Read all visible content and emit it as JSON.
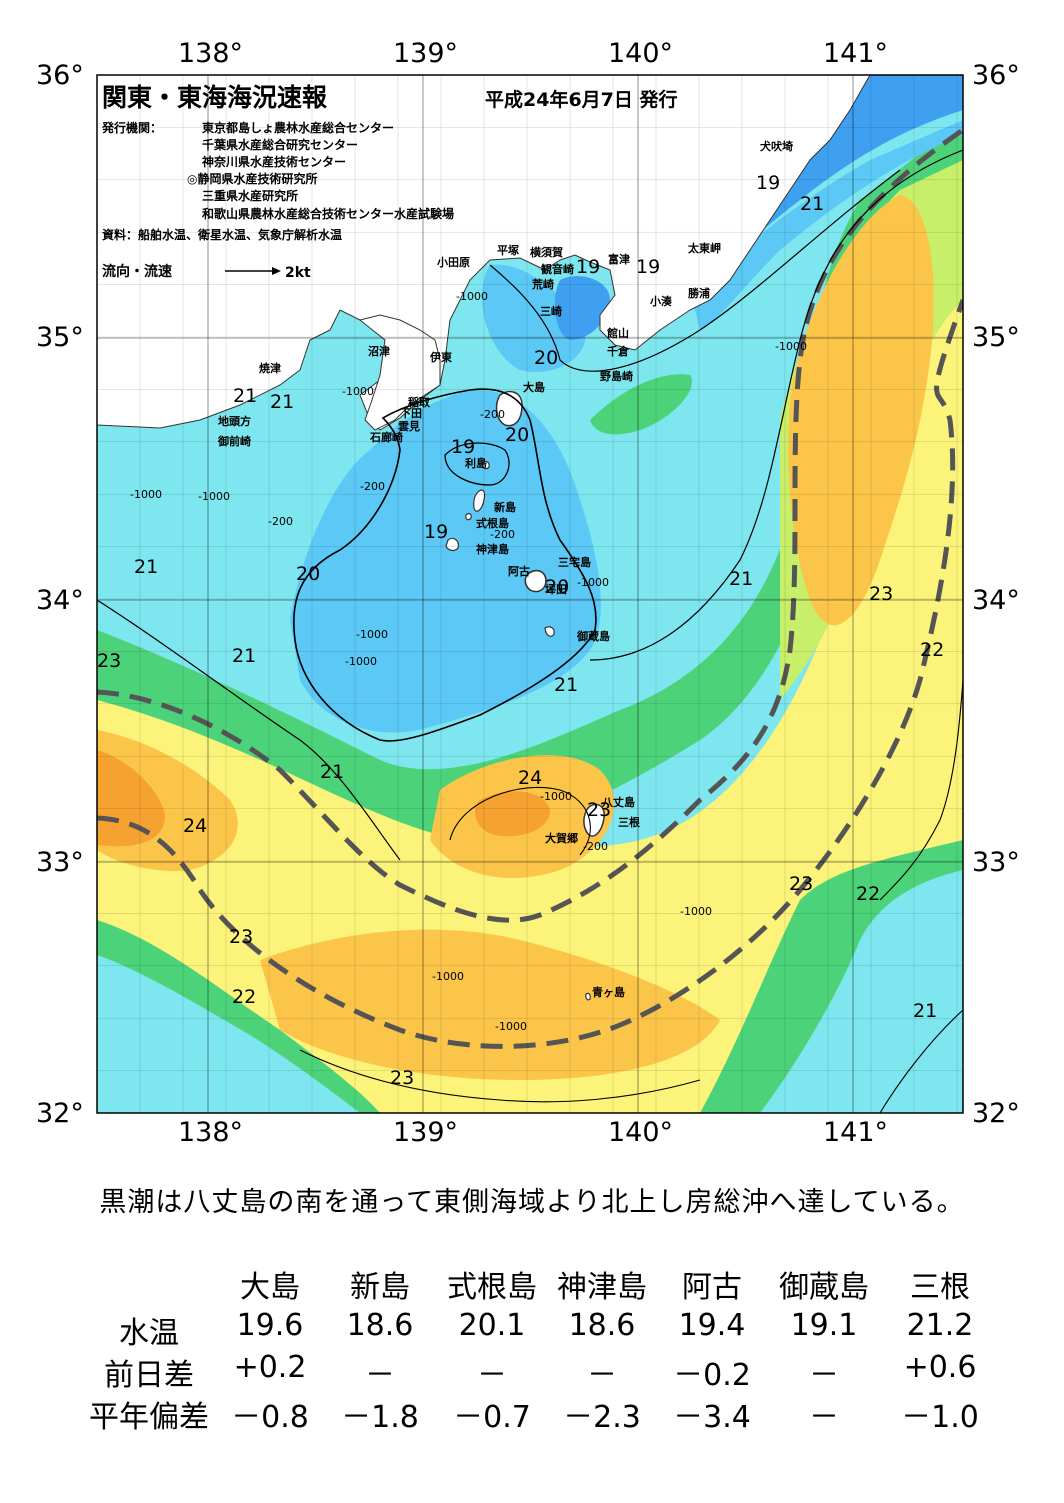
{
  "map": {
    "title": "関東・東海海況速報",
    "issue_date": "平成24年6月7日 発行",
    "publisher_label": "発行機関：",
    "publishers": [
      "東京都島しょ農林水産総合センター",
      "千葉県水産総合研究センター",
      "神奈川県水産技術センター",
      "◎静岡県水産技術研究所",
      "三重県水産研究所",
      "和歌山県農林水産総合技術センター水産試験場"
    ],
    "sources": "資料：船舶水温、衛星水温、気象庁解析水温",
    "flow_legend": "流向・流速",
    "flow_scale": "2kt",
    "lon_labels": [
      "138°",
      "139°",
      "140°",
      "141°"
    ],
    "lat_labels": [
      "36°",
      "35°",
      "34°",
      "33°",
      "32°"
    ],
    "place_labels": [
      {
        "name": "犬吠埼"
      },
      {
        "name": "太東岬"
      },
      {
        "name": "勝浦"
      },
      {
        "name": "小湊"
      },
      {
        "name": "富津"
      },
      {
        "name": "館山"
      },
      {
        "name": "千倉"
      },
      {
        "name": "野島崎"
      },
      {
        "name": "横須賀"
      },
      {
        "name": "観音崎"
      },
      {
        "name": "荒崎"
      },
      {
        "name": "三崎"
      },
      {
        "name": "平塚"
      },
      {
        "name": "小田原"
      },
      {
        "name": "沼津"
      },
      {
        "name": "伊東"
      },
      {
        "name": "焼津"
      },
      {
        "name": "稲取"
      },
      {
        "name": "下田"
      },
      {
        "name": "雲見"
      },
      {
        "name": "石廊崎"
      },
      {
        "name": "地頭方"
      },
      {
        "name": "御前崎"
      },
      {
        "name": "大島"
      },
      {
        "name": "利島"
      },
      {
        "name": "新島"
      },
      {
        "name": "式根島"
      },
      {
        "name": "神津島"
      },
      {
        "name": "三宅島"
      },
      {
        "name": "阿古"
      },
      {
        "name": "坪田"
      },
      {
        "name": "御蔵島"
      },
      {
        "name": "八丈島"
      },
      {
        "name": "三根"
      },
      {
        "name": "大賀郷"
      },
      {
        "name": "青ヶ島"
      }
    ],
    "temp_labels": [
      "19",
      "21",
      "19",
      "19",
      "20",
      "21",
      "20",
      "19",
      "19",
      "21",
      "20",
      "20",
      "21",
      "21",
      "23",
      "21",
      "23",
      "22",
      "21",
      "24",
      "24",
      "23",
      "23",
      "22",
      "21",
      "23",
      "22",
      "23",
      "21",
      "-200",
      "-1000",
      "-1000",
      "-200",
      "-1000",
      "-200",
      "-1000",
      "-1000",
      "-1000",
      "-200",
      "-1000",
      "-200",
      "-1000",
      "-1000",
      "-1000",
      "-1000",
      "-1000"
    ],
    "colors": {
      "cold": "#3f9ff0",
      "cool": "#5cc8f5",
      "cyan": "#7ee6ee",
      "green": "#4cd37a",
      "yellow_green": "#c8ef6a",
      "yellow": "#fbf37a",
      "orange": "#fbc54a",
      "deep_orange": "#f5a230",
      "kuroshio_axis": "#555555",
      "land": "#ffffff"
    }
  },
  "summary": "黒潮は八丈島の南を通って東側海域より北上し房総沖へ達している。",
  "table": {
    "stations": [
      "大島",
      "新島",
      "式根島",
      "神津島",
      "阿古",
      "御蔵島",
      "三根"
    ],
    "rows": [
      {
        "label": "水温",
        "values": [
          "19.6",
          "18.6",
          "20.1",
          "18.6",
          "19.4",
          "19.1",
          "21.2"
        ]
      },
      {
        "label": "前日差",
        "values": [
          "+0.2",
          "－",
          "－",
          "－",
          "－0.2",
          "－",
          "+0.6"
        ]
      },
      {
        "label": "平年偏差",
        "values": [
          "－0.8",
          "－1.8",
          "－0.7",
          "－2.3",
          "－3.4",
          "－",
          "－1.0"
        ]
      }
    ]
  }
}
